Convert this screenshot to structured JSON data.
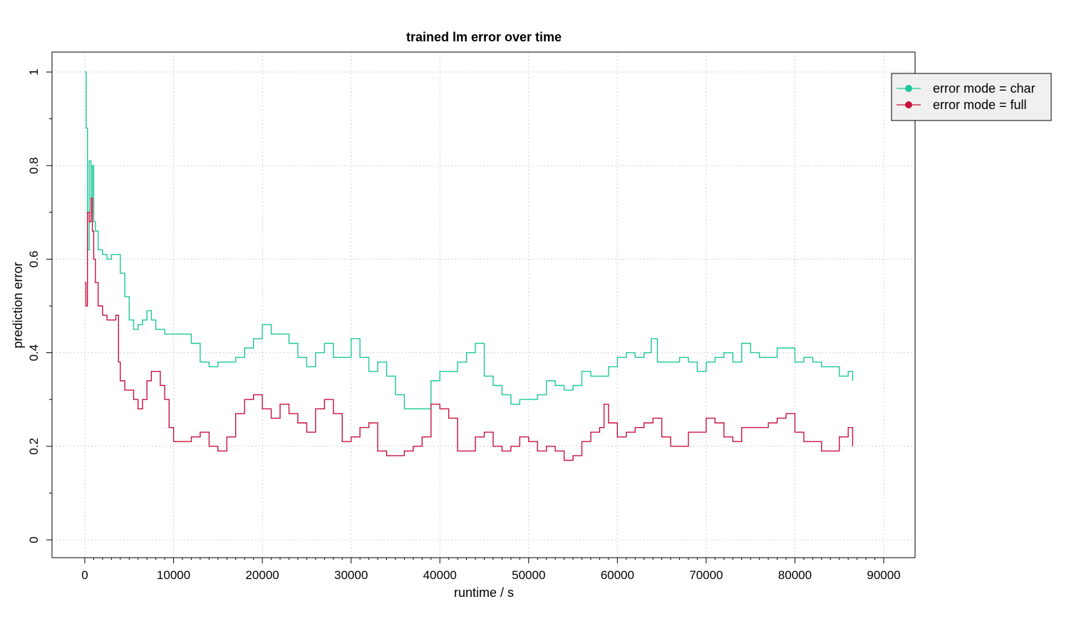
{
  "chart_data": {
    "type": "line",
    "title": "trained lm error over time",
    "xlabel": "runtime / s",
    "ylabel": "prediction error",
    "xlim": [
      0,
      90000
    ],
    "ylim": [
      0,
      1
    ],
    "xticks": [
      0,
      10000,
      20000,
      30000,
      40000,
      50000,
      60000,
      70000,
      80000,
      90000
    ],
    "yticks": [
      0,
      0.2,
      0.4,
      0.6,
      0.8,
      1
    ],
    "xtick_labels": [
      "0",
      "10000",
      "20000",
      "30000",
      "40000",
      "50000",
      "60000",
      "70000",
      "80000",
      "90000"
    ],
    "ytick_labels": [
      "0",
      "0.2",
      "0.4",
      "0.6",
      "0.8",
      "1"
    ],
    "grid": true,
    "legend_position": "top-right",
    "series": [
      {
        "name": "error mode = char",
        "color": "#1dc79a",
        "points": [
          [
            0,
            1.0
          ],
          [
            150,
            0.88
          ],
          [
            300,
            0.62
          ],
          [
            500,
            0.81
          ],
          [
            700,
            0.7
          ],
          [
            850,
            0.8
          ],
          [
            1000,
            0.68
          ],
          [
            1200,
            0.66
          ],
          [
            1500,
            0.62
          ],
          [
            2000,
            0.61
          ],
          [
            2500,
            0.6
          ],
          [
            3000,
            0.61
          ],
          [
            3500,
            0.61
          ],
          [
            4000,
            0.57
          ],
          [
            4500,
            0.52
          ],
          [
            5000,
            0.47
          ],
          [
            5500,
            0.45
          ],
          [
            6000,
            0.46
          ],
          [
            6500,
            0.47
          ],
          [
            7000,
            0.49
          ],
          [
            7500,
            0.47
          ],
          [
            8000,
            0.45
          ],
          [
            9000,
            0.44
          ],
          [
            10000,
            0.44
          ],
          [
            11000,
            0.44
          ],
          [
            12000,
            0.42
          ],
          [
            13000,
            0.38
          ],
          [
            14000,
            0.37
          ],
          [
            15000,
            0.38
          ],
          [
            16000,
            0.38
          ],
          [
            17000,
            0.39
          ],
          [
            18000,
            0.41
          ],
          [
            19000,
            0.43
          ],
          [
            20000,
            0.46
          ],
          [
            21000,
            0.44
          ],
          [
            22000,
            0.44
          ],
          [
            23000,
            0.42
          ],
          [
            24000,
            0.39
          ],
          [
            25000,
            0.37
          ],
          [
            26000,
            0.4
          ],
          [
            27000,
            0.42
          ],
          [
            28000,
            0.39
          ],
          [
            29000,
            0.39
          ],
          [
            30000,
            0.43
          ],
          [
            31000,
            0.39
          ],
          [
            32000,
            0.36
          ],
          [
            33000,
            0.38
          ],
          [
            34000,
            0.35
          ],
          [
            35000,
            0.31
          ],
          [
            36000,
            0.28
          ],
          [
            37000,
            0.28
          ],
          [
            38000,
            0.28
          ],
          [
            39000,
            0.34
          ],
          [
            40000,
            0.36
          ],
          [
            41000,
            0.36
          ],
          [
            42000,
            0.38
          ],
          [
            43000,
            0.4
          ],
          [
            44000,
            0.42
          ],
          [
            45000,
            0.35
          ],
          [
            46000,
            0.33
          ],
          [
            47000,
            0.31
          ],
          [
            48000,
            0.29
          ],
          [
            49000,
            0.3
          ],
          [
            50000,
            0.3
          ],
          [
            51000,
            0.31
          ],
          [
            52000,
            0.34
          ],
          [
            53000,
            0.33
          ],
          [
            54000,
            0.32
          ],
          [
            55000,
            0.33
          ],
          [
            56000,
            0.36
          ],
          [
            57000,
            0.35
          ],
          [
            58000,
            0.35
          ],
          [
            59000,
            0.37
          ],
          [
            60000,
            0.39
          ],
          [
            61000,
            0.4
          ],
          [
            62000,
            0.39
          ],
          [
            63000,
            0.4
          ],
          [
            63800,
            0.43
          ],
          [
            64500,
            0.38
          ],
          [
            66000,
            0.38
          ],
          [
            67000,
            0.39
          ],
          [
            68000,
            0.38
          ],
          [
            69000,
            0.36
          ],
          [
            70000,
            0.38
          ],
          [
            71000,
            0.39
          ],
          [
            72000,
            0.4
          ],
          [
            73000,
            0.38
          ],
          [
            74000,
            0.42
          ],
          [
            75000,
            0.4
          ],
          [
            76000,
            0.39
          ],
          [
            77000,
            0.39
          ],
          [
            78000,
            0.41
          ],
          [
            79000,
            0.41
          ],
          [
            80000,
            0.38
          ],
          [
            81000,
            0.39
          ],
          [
            82000,
            0.38
          ],
          [
            83000,
            0.37
          ],
          [
            84000,
            0.37
          ],
          [
            85000,
            0.35
          ],
          [
            86000,
            0.36
          ],
          [
            86500,
            0.34
          ]
        ]
      },
      {
        "name": "error mode = full",
        "color": "#c8123f",
        "points": [
          [
            0,
            0.55
          ],
          [
            120,
            0.5
          ],
          [
            300,
            0.7
          ],
          [
            500,
            0.68
          ],
          [
            700,
            0.73
          ],
          [
            850,
            0.66
          ],
          [
            1000,
            0.6
          ],
          [
            1200,
            0.55
          ],
          [
            1500,
            0.5
          ],
          [
            2000,
            0.48
          ],
          [
            2500,
            0.47
          ],
          [
            3000,
            0.47
          ],
          [
            3500,
            0.48
          ],
          [
            3800,
            0.38
          ],
          [
            4000,
            0.34
          ],
          [
            4500,
            0.32
          ],
          [
            5000,
            0.32
          ],
          [
            5500,
            0.3
          ],
          [
            6000,
            0.28
          ],
          [
            6500,
            0.3
          ],
          [
            7000,
            0.34
          ],
          [
            7500,
            0.36
          ],
          [
            8000,
            0.36
          ],
          [
            8500,
            0.33
          ],
          [
            9000,
            0.3
          ],
          [
            9500,
            0.24
          ],
          [
            10000,
            0.21
          ],
          [
            11000,
            0.21
          ],
          [
            12000,
            0.22
          ],
          [
            13000,
            0.23
          ],
          [
            14000,
            0.2
          ],
          [
            15000,
            0.19
          ],
          [
            16000,
            0.22
          ],
          [
            17000,
            0.27
          ],
          [
            18000,
            0.3
          ],
          [
            19000,
            0.31
          ],
          [
            20000,
            0.28
          ],
          [
            21000,
            0.26
          ],
          [
            22000,
            0.29
          ],
          [
            23000,
            0.27
          ],
          [
            24000,
            0.25
          ],
          [
            25000,
            0.23
          ],
          [
            26000,
            0.28
          ],
          [
            27000,
            0.3
          ],
          [
            28000,
            0.27
          ],
          [
            29000,
            0.21
          ],
          [
            30000,
            0.22
          ],
          [
            31000,
            0.24
          ],
          [
            32000,
            0.25
          ],
          [
            33000,
            0.19
          ],
          [
            34000,
            0.18
          ],
          [
            35000,
            0.18
          ],
          [
            36000,
            0.19
          ],
          [
            37000,
            0.2
          ],
          [
            38000,
            0.22
          ],
          [
            39000,
            0.29
          ],
          [
            40000,
            0.28
          ],
          [
            41000,
            0.26
          ],
          [
            42000,
            0.19
          ],
          [
            43000,
            0.19
          ],
          [
            44000,
            0.22
          ],
          [
            45000,
            0.23
          ],
          [
            46000,
            0.2
          ],
          [
            47000,
            0.19
          ],
          [
            48000,
            0.2
          ],
          [
            49000,
            0.22
          ],
          [
            50000,
            0.21
          ],
          [
            51000,
            0.19
          ],
          [
            52000,
            0.2
          ],
          [
            53000,
            0.19
          ],
          [
            54000,
            0.17
          ],
          [
            55000,
            0.18
          ],
          [
            56000,
            0.21
          ],
          [
            57000,
            0.23
          ],
          [
            58000,
            0.24
          ],
          [
            58500,
            0.29
          ],
          [
            59000,
            0.25
          ],
          [
            60000,
            0.22
          ],
          [
            61000,
            0.23
          ],
          [
            62000,
            0.24
          ],
          [
            63000,
            0.25
          ],
          [
            64000,
            0.26
          ],
          [
            65000,
            0.22
          ],
          [
            66000,
            0.2
          ],
          [
            67000,
            0.2
          ],
          [
            68000,
            0.23
          ],
          [
            69000,
            0.23
          ],
          [
            70000,
            0.26
          ],
          [
            71000,
            0.25
          ],
          [
            72000,
            0.22
          ],
          [
            73000,
            0.21
          ],
          [
            74000,
            0.24
          ],
          [
            75000,
            0.24
          ],
          [
            76000,
            0.24
          ],
          [
            77000,
            0.25
          ],
          [
            78000,
            0.26
          ],
          [
            79000,
            0.27
          ],
          [
            80000,
            0.23
          ],
          [
            81000,
            0.21
          ],
          [
            82000,
            0.21
          ],
          [
            83000,
            0.19
          ],
          [
            84000,
            0.19
          ],
          [
            85000,
            0.22
          ],
          [
            86000,
            0.24
          ],
          [
            86500,
            0.2
          ]
        ]
      }
    ]
  }
}
